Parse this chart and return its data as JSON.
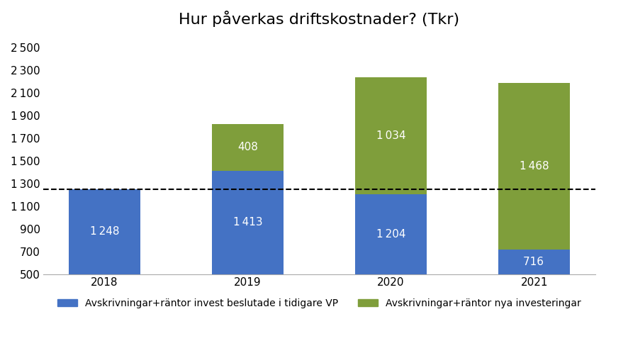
{
  "title": "Hur påverkas driftskostnader? (Tkr)",
  "categories": [
    "2018",
    "2019",
    "2020",
    "2021"
  ],
  "blue_values": [
    1248,
    1413,
    1204,
    716
  ],
  "green_values": [
    0,
    408,
    1034,
    1468
  ],
  "blue_color": "#4472C4",
  "green_color": "#7F9E3B",
  "ylim_min": 500,
  "ylim_max": 2600,
  "yticks": [
    500,
    700,
    900,
    1100,
    1300,
    1500,
    1700,
    1900,
    2100,
    2300,
    2500
  ],
  "dashed_line_y": 1248,
  "legend_blue": "Avskrivningar+räntor invest beslutade i tidigare VP",
  "legend_green": "Avskrivningar+räntor nya investeringar",
  "bar_width": 0.5,
  "background_color": "#FFFFFF",
  "title_fontsize": 16,
  "label_fontsize": 11,
  "tick_fontsize": 11,
  "legend_fontsize": 10
}
